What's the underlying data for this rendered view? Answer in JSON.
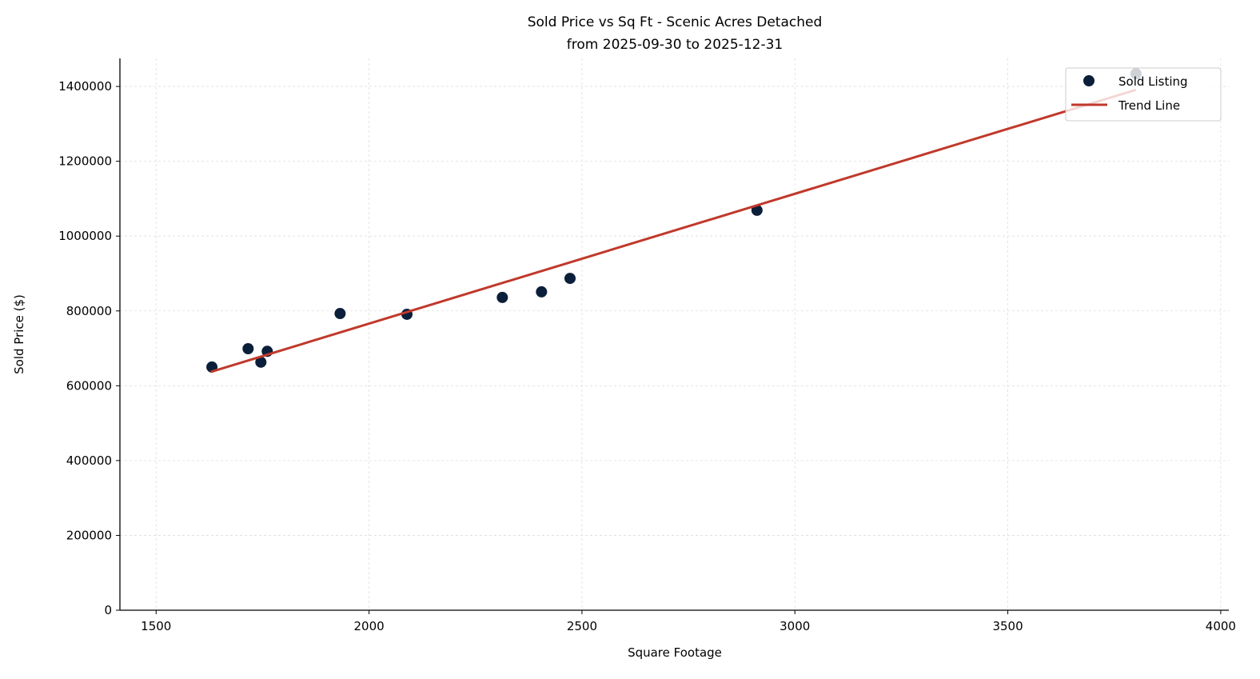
{
  "chart_data": {
    "type": "scatter",
    "title": "Sold Price vs Sq Ft - Scenic Acres Detached",
    "subtitle": "from 2025-09-30 to 2025-12-31",
    "xlabel": "Square Footage",
    "ylabel": "Sold Price ($)",
    "xlim": [
      1415,
      4019
    ],
    "ylim": [
      0,
      1475000
    ],
    "xticks": [
      1500,
      2000,
      2500,
      3000,
      3500,
      4000
    ],
    "yticks": [
      0,
      200000,
      400000,
      600000,
      800000,
      1000000,
      1200000,
      1400000
    ],
    "grid": true,
    "legend_position": "top-right",
    "series": [
      {
        "name": "Sold Listing",
        "kind": "scatter",
        "color": "#0b1f3a",
        "points": [
          [
            1631,
            650000
          ],
          [
            1716,
            699000
          ],
          [
            1746,
            663000
          ],
          [
            1761,
            692000
          ],
          [
            1932,
            793000
          ],
          [
            2089,
            791000
          ],
          [
            2313,
            836000
          ],
          [
            2405,
            851000
          ],
          [
            2472,
            887000
          ],
          [
            2911,
            1069000
          ],
          [
            3801,
            1434000
          ]
        ]
      },
      {
        "name": "Trend Line",
        "kind": "line",
        "color": "#c0392b",
        "points": [
          [
            1628,
            637000
          ],
          [
            3801,
            1391000
          ]
        ]
      }
    ]
  }
}
